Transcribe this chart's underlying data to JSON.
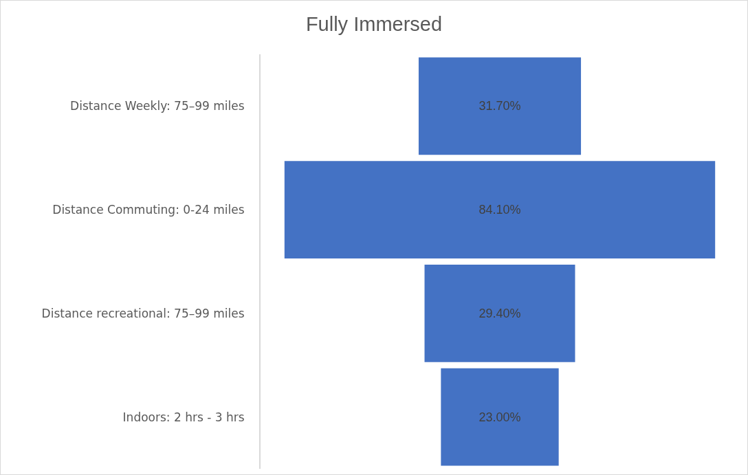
{
  "chart_data": {
    "type": "other",
    "title": "Fully Immersed",
    "categories": [
      "Distance Weekly: 75–99 miles",
      "Distance Commuting: 0-24 miles",
      "Distance recreational: 75–99 miles",
      "Indoors: 2 hrs - 3 hrs"
    ],
    "values": [
      31.7,
      84.1,
      29.4,
      23.0
    ],
    "value_labels": [
      "31.70%",
      "84.10%",
      "29.40%",
      "23.00%"
    ],
    "color": "#4472c4",
    "legend": false
  }
}
